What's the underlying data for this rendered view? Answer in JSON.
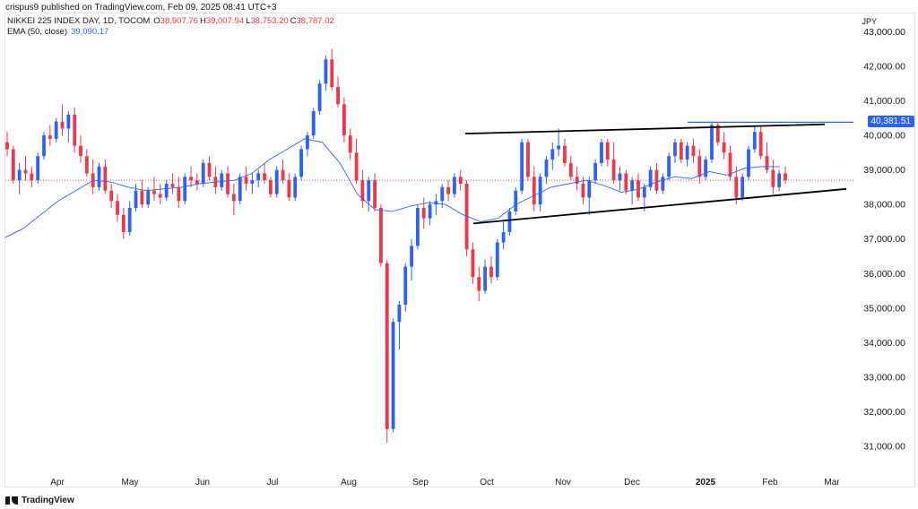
{
  "header": {
    "published": "crispus9 published on TradingView.com, Feb 09, 2025 08:41 UTC+3"
  },
  "legend": {
    "symbol": "NIKKEI 225 INDEX DAY, 1D, TOCOM",
    "ohlc": [
      {
        "key": "O",
        "value": "38,907.76"
      },
      {
        "key": "H",
        "value": "39,007.94"
      },
      {
        "key": "L",
        "value": "38,753.20"
      },
      {
        "key": "C",
        "value": "38,787.02"
      }
    ],
    "ema_label": "EMA (50, close)",
    "ema_value": "39,090.17"
  },
  "currency": "JPY",
  "last_price_label": "40,381.51",
  "footer": {
    "brand": "TradingView"
  },
  "colors": {
    "up": "#2962ff",
    "down": "#f23645",
    "ema": "#2962ff",
    "trendline": "#000000",
    "hline": "#2962ff"
  },
  "chart_data": {
    "type": "candlestick",
    "y_axis": {
      "ticks": [
        31000,
        32000,
        33000,
        34000,
        35000,
        36000,
        37000,
        38000,
        39000,
        40000,
        41000,
        42000,
        43000
      ],
      "tick_labels": [
        "31,000.00",
        "32,000.00",
        "33,000.00",
        "34,000.00",
        "35,000.00",
        "36,000.00",
        "37,000.00",
        "38,000.00",
        "39,000.00",
        "40,000.00",
        "41,000.00",
        "42,000.00",
        "43,000.00"
      ],
      "ylim": [
        30300,
        43400
      ]
    },
    "x_axis": {
      "labels": [
        "Apr",
        "May",
        "Jun",
        "Jul",
        "Aug",
        "Sep",
        "Oct",
        "Nov",
        "Dec",
        "2025",
        "Feb",
        "Mar"
      ]
    },
    "ema_50": [
      37050,
      37300,
      37700,
      38100,
      38400,
      38700,
      38650,
      38500,
      38400,
      38450,
      38500,
      38600,
      38650,
      38700,
      38900,
      39300,
      39600,
      39900,
      39800,
      39200,
      38300,
      37850,
      37800,
      37950,
      38050,
      38000,
      37700,
      37500,
      37600,
      38000,
      38250,
      38500,
      38600,
      38700,
      38550,
      38350,
      38450,
      38650,
      38800,
      38750,
      38950,
      38850,
      39050,
      39100,
      39090
    ],
    "horizontal_line": 40381.51,
    "trendlines": [
      {
        "name": "upper",
        "from": [
          40050,
          "Sep-end"
        ],
        "to": [
          40320,
          "Feb-end"
        ]
      },
      {
        "name": "lower",
        "from": [
          37450,
          "Sep-end"
        ],
        "to": [
          38450,
          "Feb-end"
        ]
      }
    ],
    "candles": [
      [
        39800,
        40100,
        39400,
        39600
      ],
      [
        39600,
        39700,
        38600,
        38700
      ],
      [
        38700,
        39200,
        38300,
        39000
      ],
      [
        39000,
        39400,
        38700,
        38900
      ],
      [
        38900,
        39100,
        38500,
        38700
      ],
      [
        38700,
        39500,
        38600,
        39400
      ],
      [
        39400,
        40100,
        39300,
        40000
      ],
      [
        40000,
        40300,
        39700,
        39900
      ],
      [
        39900,
        40500,
        39800,
        40400
      ],
      [
        40400,
        40900,
        40000,
        40200
      ],
      [
        40200,
        40700,
        39800,
        40600
      ],
      [
        40600,
        40800,
        39500,
        39700
      ],
      [
        39700,
        40000,
        39200,
        39400
      ],
      [
        39400,
        39600,
        38800,
        38900
      ],
      [
        38900,
        39300,
        38300,
        38500
      ],
      [
        38500,
        39200,
        38400,
        39100
      ],
      [
        39100,
        39300,
        38300,
        38400
      ],
      [
        38400,
        38600,
        37900,
        38100
      ],
      [
        38100,
        38300,
        37500,
        37700
      ],
      [
        37700,
        37900,
        37000,
        37200
      ],
      [
        37200,
        38100,
        37100,
        37900
      ],
      [
        37900,
        38600,
        37800,
        38400
      ],
      [
        38400,
        38700,
        37900,
        38000
      ],
      [
        38000,
        38500,
        37900,
        38400
      ],
      [
        38400,
        38800,
        38100,
        38300
      ],
      [
        38300,
        38600,
        38000,
        38200
      ],
      [
        38200,
        38700,
        38100,
        38600
      ],
      [
        38600,
        38900,
        38300,
        38500
      ],
      [
        38500,
        38800,
        37900,
        38100
      ],
      [
        38100,
        38900,
        38000,
        38800
      ],
      [
        38800,
        39100,
        38500,
        38700
      ],
      [
        38700,
        38900,
        38400,
        38600
      ],
      [
        38600,
        39300,
        38500,
        39200
      ],
      [
        39200,
        39400,
        38700,
        38800
      ],
      [
        38800,
        39100,
        38300,
        38500
      ],
      [
        38500,
        39000,
        38400,
        38900
      ],
      [
        38900,
        39100,
        38200,
        38300
      ],
      [
        38300,
        38600,
        37700,
        38100
      ],
      [
        38100,
        38900,
        38000,
        38800
      ],
      [
        38800,
        39100,
        38400,
        38600
      ],
      [
        38600,
        38900,
        38300,
        38700
      ],
      [
        38700,
        39000,
        38500,
        38900
      ],
      [
        38900,
        39200,
        38600,
        38700
      ],
      [
        38700,
        38800,
        38200,
        38300
      ],
      [
        38300,
        39100,
        38200,
        39000
      ],
      [
        39000,
        39300,
        38600,
        38700
      ],
      [
        38700,
        38900,
        38100,
        38200
      ],
      [
        38200,
        38900,
        38100,
        38800
      ],
      [
        38800,
        39700,
        38700,
        39600
      ],
      [
        39600,
        40100,
        39400,
        40000
      ],
      [
        40000,
        40800,
        39900,
        40700
      ],
      [
        40700,
        41600,
        40600,
        41500
      ],
      [
        41500,
        42300,
        41300,
        42200
      ],
      [
        42200,
        42500,
        41300,
        41400
      ],
      [
        41400,
        41700,
        40800,
        40900
      ],
      [
        40900,
        41100,
        39800,
        40000
      ],
      [
        40000,
        40200,
        39300,
        39500
      ],
      [
        39500,
        39900,
        38600,
        38700
      ],
      [
        38700,
        39000,
        37900,
        38100
      ],
      [
        38100,
        38800,
        37800,
        38700
      ],
      [
        38700,
        38900,
        37800,
        37900
      ],
      [
        37900,
        38000,
        36200,
        36300
      ],
      [
        36300,
        36400,
        31100,
        31500
      ],
      [
        31500,
        34700,
        31400,
        34600
      ],
      [
        34600,
        35200,
        33800,
        35100
      ],
      [
        35100,
        36300,
        34900,
        36200
      ],
      [
        36200,
        37000,
        35800,
        36800
      ],
      [
        36800,
        38000,
        36700,
        37900
      ],
      [
        37900,
        38200,
        37300,
        37600
      ],
      [
        37600,
        38100,
        37400,
        38000
      ],
      [
        38000,
        38300,
        37700,
        38100
      ],
      [
        38100,
        38600,
        37900,
        38500
      ],
      [
        38500,
        38700,
        38100,
        38300
      ],
      [
        38300,
        38900,
        38200,
        38800
      ],
      [
        38800,
        39000,
        38400,
        38600
      ],
      [
        38600,
        38700,
        36500,
        36700
      ],
      [
        36700,
        36900,
        35700,
        35900
      ],
      [
        35900,
        36200,
        35200,
        35500
      ],
      [
        35500,
        36400,
        35400,
        36200
      ],
      [
        36200,
        36500,
        35700,
        35900
      ],
      [
        35900,
        37000,
        35800,
        36900
      ],
      [
        36900,
        37500,
        36700,
        37200
      ],
      [
        37200,
        37900,
        37100,
        37800
      ],
      [
        37800,
        38500,
        37700,
        38400
      ],
      [
        38400,
        39900,
        38300,
        39800
      ],
      [
        39800,
        39900,
        38700,
        38800
      ],
      [
        38800,
        39100,
        37800,
        38000
      ],
      [
        38000,
        38900,
        37800,
        38800
      ],
      [
        38800,
        39400,
        38600,
        39300
      ],
      [
        39300,
        39800,
        39000,
        39600
      ],
      [
        39600,
        40200,
        39400,
        39700
      ],
      [
        39700,
        39900,
        39100,
        39200
      ],
      [
        39200,
        39400,
        38700,
        38800
      ],
      [
        38800,
        39100,
        38400,
        38600
      ],
      [
        38600,
        38800,
        38000,
        38200
      ],
      [
        38200,
        38800,
        37700,
        38700
      ],
      [
        38700,
        39300,
        38600,
        39200
      ],
      [
        39200,
        39900,
        39100,
        39800
      ],
      [
        39800,
        39900,
        39100,
        39300
      ],
      [
        39300,
        39800,
        38600,
        38700
      ],
      [
        38700,
        39100,
        38400,
        38900
      ],
      [
        38900,
        39000,
        38300,
        38400
      ],
      [
        38400,
        38800,
        38000,
        38700
      ],
      [
        38700,
        38900,
        38100,
        38200
      ],
      [
        38200,
        38600,
        37800,
        38500
      ],
      [
        38500,
        39100,
        38400,
        39000
      ],
      [
        39000,
        39200,
        38300,
        38400
      ],
      [
        38400,
        38900,
        38300,
        38800
      ],
      [
        38800,
        39500,
        38700,
        39400
      ],
      [
        39400,
        39900,
        39200,
        39800
      ],
      [
        39800,
        39900,
        39200,
        39300
      ],
      [
        39300,
        39800,
        39100,
        39700
      ],
      [
        39700,
        39900,
        39200,
        39400
      ],
      [
        39400,
        39600,
        38600,
        38800
      ],
      [
        38800,
        39400,
        38700,
        39300
      ],
      [
        39300,
        40400,
        39200,
        40300
      ],
      [
        40300,
        40400,
        39700,
        39800
      ],
      [
        39800,
        40100,
        39300,
        39500
      ],
      [
        39500,
        39700,
        38700,
        38800
      ],
      [
        38800,
        39100,
        38000,
        38200
      ],
      [
        38200,
        38900,
        38100,
        38800
      ],
      [
        38800,
        39700,
        38700,
        39600
      ],
      [
        39600,
        40300,
        39500,
        40100
      ],
      [
        40100,
        40300,
        39300,
        39400
      ],
      [
        39400,
        39800,
        38900,
        39000
      ],
      [
        39000,
        39300,
        38300,
        38500
      ],
      [
        38500,
        39000,
        38400,
        38900
      ],
      [
        38900,
        39100,
        38600,
        38700
      ]
    ]
  }
}
